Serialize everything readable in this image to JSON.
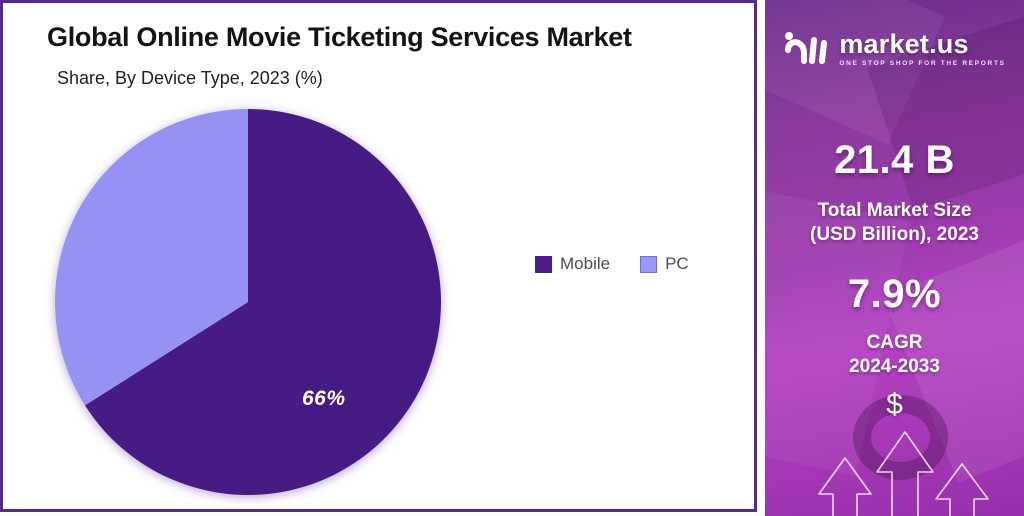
{
  "header": {
    "title": "Global Online Movie Ticketing Services Market",
    "subtitle": "Share, By Device Type, 2023 (%)"
  },
  "chart_data": {
    "type": "pie",
    "title": "Global Online Movie Ticketing Services Market",
    "subtitle": "Share, By Device Type, 2023 (%)",
    "categories": [
      "Mobile",
      "PC"
    ],
    "values": [
      66,
      34
    ],
    "unit": "percent",
    "colors": [
      "#471b84",
      "#9592f3"
    ],
    "start_angle": "12-oclock",
    "direction": "clockwise",
    "data_labels": [
      {
        "slice": "Mobile",
        "text": "66%"
      }
    ],
    "legend_position": "right-middle"
  },
  "legend": {
    "items": [
      {
        "label": "Mobile",
        "color": "#4a1d86",
        "border": "#4a1d86"
      },
      {
        "label": "PC",
        "color": "#9b97f6",
        "border": "#756bd6"
      }
    ]
  },
  "sidebar": {
    "brand": {
      "name": "market.us",
      "tagline": "ONE STOP SHOP FOR THE REPORTS",
      "logo_icon": "market-us-wave-logo"
    },
    "market_size": {
      "value": "21.4 B",
      "label_line1": "Total Market Size",
      "label_line2": "(USD Billion), 2023"
    },
    "cagr": {
      "value": "7.9%",
      "label_line1": "CAGR",
      "label_line2": "2024-2033"
    },
    "dollar_symbol": "$",
    "decor_icons": [
      "growth-arrows-icon",
      "coffee-ring-icon"
    ]
  },
  "colors": {
    "card_border": "#562a8e",
    "slice_mobile": "#471b84",
    "slice_pc": "#9592f3",
    "sidebar_top": "#6b2b8c",
    "sidebar_bottom": "#b342c2"
  }
}
